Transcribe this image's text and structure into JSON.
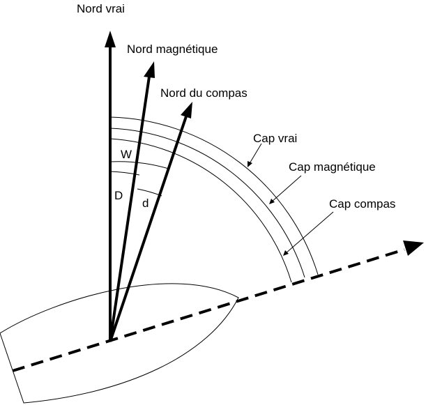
{
  "diagram": {
    "labels": {
      "true_north": "Nord vrai",
      "magnetic_north": "Nord magnétique",
      "compass_north": "Nord du compas",
      "true_heading": "Cap vrai",
      "magnetic_heading": "Cap magnétique",
      "compass_heading": "Cap compas",
      "variation": "W",
      "total_error": "D",
      "deviation": "d"
    },
    "colors": {
      "ink": "#000000",
      "background": "#ffffff"
    }
  }
}
